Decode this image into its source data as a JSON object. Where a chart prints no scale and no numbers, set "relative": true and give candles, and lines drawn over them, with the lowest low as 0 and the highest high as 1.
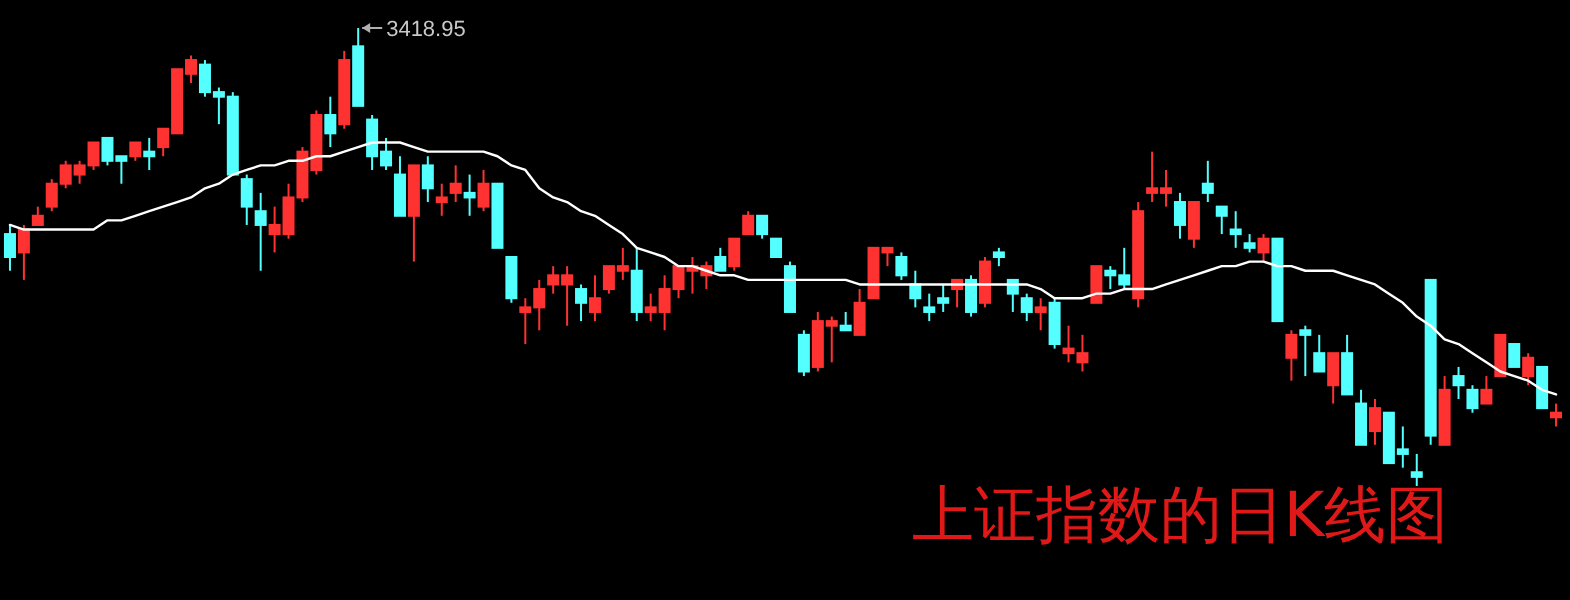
{
  "chart_data": {
    "type": "candlestick",
    "title": "上证指数的日K线图",
    "relative": true,
    "annotations": [
      "3418.95"
    ],
    "categories": [
      null,
      null,
      null,
      null,
      null,
      null,
      null,
      null,
      null,
      null,
      null,
      null,
      null,
      null,
      null,
      null,
      null,
      null,
      null,
      null,
      null,
      null,
      null,
      null,
      null,
      null,
      null,
      null,
      null,
      null,
      null,
      null,
      null,
      null,
      null,
      null,
      null,
      null,
      null,
      null,
      null,
      null,
      null,
      null,
      null,
      null,
      null,
      null,
      null,
      null,
      null,
      null,
      null,
      null,
      null,
      null,
      null,
      null,
      null,
      null,
      null,
      null,
      null,
      null,
      null,
      null,
      null,
      null,
      null,
      null,
      null,
      null,
      null,
      null,
      null,
      null,
      null,
      null,
      null,
      null,
      null,
      null,
      null,
      null,
      null,
      null,
      null,
      null,
      null,
      null,
      null,
      null,
      null,
      null,
      null,
      null,
      null,
      null,
      null,
      null,
      null,
      null,
      null,
      null,
      null,
      null,
      null,
      null,
      null,
      null,
      null,
      null
    ],
    "ohlc": [
      [
        0.55,
        0.57,
        0.47,
        0.5
      ],
      [
        0.51,
        0.57,
        0.45,
        0.56
      ],
      [
        0.57,
        0.61,
        0.57,
        0.59
      ],
      [
        0.61,
        0.67,
        0.6,
        0.66
      ],
      [
        0.66,
        0.71,
        0.65,
        0.7
      ],
      [
        0.68,
        0.71,
        0.66,
        0.7
      ],
      [
        0.7,
        0.75,
        0.69,
        0.75
      ],
      [
        0.76,
        0.76,
        0.7,
        0.71
      ],
      [
        0.72,
        0.72,
        0.66,
        0.71
      ],
      [
        0.72,
        0.75,
        0.71,
        0.75
      ],
      [
        0.73,
        0.76,
        0.69,
        0.72
      ],
      [
        0.74,
        0.78,
        0.72,
        0.78
      ],
      [
        0.77,
        0.91,
        0.77,
        0.91
      ],
      [
        0.9,
        0.94,
        0.88,
        0.93
      ],
      [
        0.92,
        0.93,
        0.85,
        0.86
      ],
      [
        0.86,
        0.87,
        0.79,
        0.85
      ],
      [
        0.85,
        0.86,
        0.68,
        0.68
      ],
      [
        0.67,
        0.68,
        0.57,
        0.61
      ],
      [
        0.6,
        0.64,
        0.47,
        0.57
      ],
      [
        0.55,
        0.61,
        0.51,
        0.57
      ],
      [
        0.55,
        0.66,
        0.54,
        0.63
      ],
      [
        0.63,
        0.74,
        0.62,
        0.73
      ],
      [
        0.69,
        0.82,
        0.68,
        0.81
      ],
      [
        0.81,
        0.85,
        0.74,
        0.77
      ],
      [
        0.79,
        0.95,
        0.78,
        0.93
      ],
      [
        0.96,
        1,
        0.83,
        0.83
      ],
      [
        0.8,
        0.81,
        0.69,
        0.72
      ],
      [
        0.73,
        0.76,
        0.69,
        0.7
      ],
      [
        0.68,
        0.72,
        0.59,
        0.59
      ],
      [
        0.59,
        0.7,
        0.49,
        0.7
      ],
      [
        0.7,
        0.72,
        0.62,
        0.65
      ],
      [
        0.62,
        0.66,
        0.59,
        0.63
      ],
      [
        0.64,
        0.7,
        0.62,
        0.66
      ],
      [
        0.64,
        0.68,
        0.59,
        0.63
      ],
      [
        0.61,
        0.69,
        0.6,
        0.66
      ],
      [
        0.66,
        0.66,
        0.52,
        0.52
      ],
      [
        0.5,
        0.5,
        0.4,
        0.41
      ],
      [
        0.38,
        0.41,
        0.31,
        0.39
      ],
      [
        0.39,
        0.45,
        0.34,
        0.43
      ],
      [
        0.44,
        0.48,
        0.42,
        0.46
      ],
      [
        0.44,
        0.48,
        0.35,
        0.46
      ],
      [
        0.43,
        0.44,
        0.36,
        0.4
      ],
      [
        0.38,
        0.46,
        0.36,
        0.41
      ],
      [
        0.43,
        0.48,
        0.42,
        0.48
      ],
      [
        0.47,
        0.52,
        0.45,
        0.48
      ],
      [
        0.47,
        0.52,
        0.36,
        0.38
      ],
      [
        0.38,
        0.42,
        0.36,
        0.39
      ],
      [
        0.38,
        0.46,
        0.34,
        0.43
      ],
      [
        0.43,
        0.48,
        0.41,
        0.48
      ],
      [
        0.47,
        0.5,
        0.42,
        0.48
      ],
      [
        0.46,
        0.49,
        0.43,
        0.48
      ],
      [
        0.5,
        0.52,
        0.47,
        0.47
      ],
      [
        0.48,
        0.54,
        0.47,
        0.54
      ],
      [
        0.55,
        0.6,
        0.55,
        0.59
      ],
      [
        0.59,
        0.59,
        0.54,
        0.55
      ],
      [
        0.54,
        0.54,
        0.5,
        0.5
      ],
      [
        0.48,
        0.49,
        0.38,
        0.38
      ],
      [
        0.33,
        0.34,
        0.24,
        0.25
      ],
      [
        0.26,
        0.38,
        0.25,
        0.36
      ],
      [
        0.35,
        0.37,
        0.27,
        0.36
      ],
      [
        0.35,
        0.38,
        0.34,
        0.34
      ],
      [
        0.33,
        0.43,
        0.33,
        0.4
      ],
      [
        0.41,
        0.52,
        0.41,
        0.52
      ],
      [
        0.51,
        0.52,
        0.48,
        0.52
      ],
      [
        0.5,
        0.51,
        0.45,
        0.46
      ],
      [
        0.44,
        0.47,
        0.39,
        0.41
      ],
      [
        0.39,
        0.42,
        0.36,
        0.38
      ],
      [
        0.41,
        0.44,
        0.38,
        0.4
      ],
      [
        0.43,
        0.45,
        0.39,
        0.45
      ],
      [
        0.45,
        0.46,
        0.37,
        0.38
      ],
      [
        0.4,
        0.5,
        0.39,
        0.49
      ],
      [
        0.51,
        0.52,
        0.48,
        0.5
      ],
      [
        0.45,
        0.45,
        0.38,
        0.42
      ],
      [
        0.41,
        0.42,
        0.36,
        0.38
      ],
      [
        0.38,
        0.41,
        0.34,
        0.39
      ],
      [
        0.4,
        0.41,
        0.3,
        0.31
      ],
      [
        0.29,
        0.35,
        0.27,
        0.3
      ],
      [
        0.27,
        0.33,
        0.25,
        0.29
      ],
      [
        0.4,
        0.48,
        0.4,
        0.48
      ],
      [
        0.47,
        0.48,
        0.43,
        0.46
      ],
      [
        0.46,
        0.52,
        0.43,
        0.44
      ],
      [
        0.41,
        0.62,
        0.39,
        0.6
      ],
      [
        0.64,
        0.73,
        0.62,
        0.65
      ],
      [
        0.64,
        0.69,
        0.61,
        0.65
      ],
      [
        0.62,
        0.64,
        0.54,
        0.57
      ],
      [
        0.54,
        0.62,
        0.52,
        0.62
      ],
      [
        0.66,
        0.71,
        0.62,
        0.64
      ],
      [
        0.61,
        0.61,
        0.55,
        0.59
      ],
      [
        0.56,
        0.6,
        0.52,
        0.55
      ],
      [
        0.53,
        0.55,
        0.51,
        0.52
      ],
      [
        0.51,
        0.55,
        0.49,
        0.54
      ],
      [
        0.54,
        0.54,
        0.36,
        0.36
      ],
      [
        0.28,
        0.34,
        0.23,
        0.33
      ],
      [
        0.34,
        0.35,
        0.24,
        0.33
      ],
      [
        0.29,
        0.33,
        0.25,
        0.25
      ],
      [
        0.22,
        0.29,
        0.18,
        0.29
      ],
      [
        0.29,
        0.33,
        0.2,
        0.2
      ],
      [
        0.18,
        0.21,
        0.09,
        0.09
      ],
      [
        0.12,
        0.19,
        0.09,
        0.17
      ],
      [
        0.16,
        0.16,
        0.05,
        0.05
      ],
      [
        0.08,
        0.13,
        0.04,
        0.07
      ],
      [
        0.03,
        0.07,
        0,
        0.02
      ],
      [
        0.45,
        0.45,
        0.09,
        0.11
      ],
      [
        0.09,
        0.24,
        0.09,
        0.21
      ],
      [
        0.24,
        0.26,
        0.19,
        0.22
      ],
      [
        0.21,
        0.22,
        0.16,
        0.17
      ],
      [
        0.18,
        0.24,
        0.18,
        0.21
      ],
      [
        0.24,
        0.33,
        0.24,
        0.33
      ],
      [
        0.31,
        0.31,
        0.26,
        0.26
      ],
      [
        0.24,
        0.29,
        0.22,
        0.28
      ],
      [
        0.26,
        0.26,
        0.17,
        0.17
      ],
      [
        0.15,
        0.18,
        0.13,
        0.16
      ]
    ],
    "series": [
      {
        "type": "line",
        "color": "#ffffff",
        "values": [
          0.57,
          0.56,
          0.56,
          0.56,
          0.56,
          0.56,
          0.56,
          0.58,
          0.58,
          0.59,
          0.6,
          0.61,
          0.62,
          0.63,
          0.65,
          0.66,
          0.68,
          0.69,
          0.7,
          0.7,
          0.71,
          0.71,
          0.72,
          0.72,
          0.73,
          0.74,
          0.75,
          0.75,
          0.75,
          0.74,
          0.73,
          0.73,
          0.73,
          0.73,
          0.73,
          0.72,
          0.7,
          0.69,
          0.65,
          0.63,
          0.62,
          0.6,
          0.59,
          0.57,
          0.55,
          0.52,
          0.51,
          0.5,
          0.48,
          0.48,
          0.47,
          0.46,
          0.46,
          0.45,
          0.45,
          0.45,
          0.45,
          0.45,
          0.45,
          0.45,
          0.45,
          0.44,
          0.44,
          0.44,
          0.44,
          0.44,
          0.44,
          0.44,
          0.44,
          0.44,
          0.44,
          0.44,
          0.44,
          0.44,
          0.43,
          0.41,
          0.41,
          0.41,
          0.42,
          0.42,
          0.43,
          0.43,
          0.43,
          0.44,
          0.45,
          0.46,
          0.47,
          0.48,
          0.48,
          0.49,
          0.49,
          0.48,
          0.48,
          0.47,
          0.47,
          0.47,
          0.46,
          0.45,
          0.44,
          0.42,
          0.4,
          0.37,
          0.35,
          0.32,
          0.31,
          0.29,
          0.27,
          0.25,
          0.24,
          0.23,
          0.21,
          0.2
        ]
      }
    ]
  }
}
